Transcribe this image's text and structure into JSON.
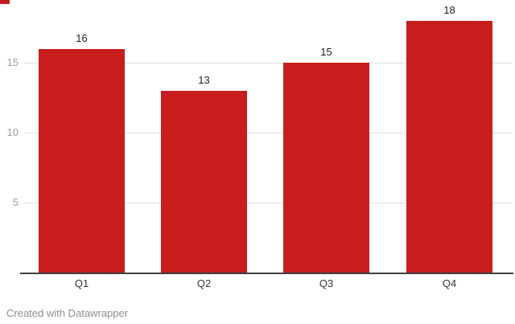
{
  "chart_data": {
    "type": "bar",
    "categories": [
      "Q1",
      "Q2",
      "Q3",
      "Q4"
    ],
    "values": [
      16,
      13,
      15,
      18
    ],
    "value_labels": [
      "16",
      "13",
      "15",
      "18"
    ],
    "title": "",
    "xlabel": "",
    "ylabel": "",
    "yticks": [
      5,
      10,
      15
    ],
    "ylim": [
      0,
      18.6
    ],
    "grid": true,
    "legend": false,
    "bar_color": "#c71e1d"
  },
  "colors": {
    "bar": "#c71e1d",
    "gridline": "#dfdfdf",
    "tick_label": "#9d9d9d",
    "value_label": "#1d1d1d",
    "category_label": "#333333",
    "baseline": "#3f3f3f",
    "credit_text": "#8f8f8f"
  },
  "footer": {
    "credit": "Created with Datawrapper"
  }
}
